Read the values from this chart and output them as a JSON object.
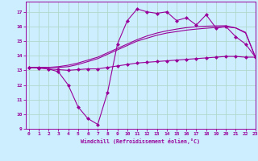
{
  "title": "",
  "xlabel": "Windchill (Refroidissement éolien,°C)",
  "bg_color": "#cceeff",
  "grid_color": "#b0d9cc",
  "line_color": "#990099",
  "x_data": [
    0,
    1,
    2,
    3,
    4,
    5,
    6,
    7,
    8,
    9,
    10,
    11,
    12,
    13,
    14,
    15,
    16,
    17,
    18,
    19,
    20,
    21,
    22,
    23
  ],
  "line1": [
    13.2,
    13.2,
    13.1,
    12.9,
    12.0,
    10.5,
    9.7,
    9.3,
    11.5,
    14.8,
    16.4,
    17.2,
    17.0,
    16.9,
    17.0,
    16.4,
    16.6,
    16.1,
    16.8,
    15.9,
    16.0,
    15.3,
    14.8,
    13.9
  ],
  "line2": [
    13.2,
    13.15,
    13.1,
    13.05,
    13.0,
    13.05,
    13.1,
    13.1,
    13.2,
    13.3,
    13.4,
    13.5,
    13.55,
    13.6,
    13.65,
    13.7,
    13.75,
    13.8,
    13.85,
    13.9,
    13.95,
    13.95,
    13.9,
    13.9
  ],
  "line3": [
    13.2,
    13.2,
    13.2,
    13.2,
    13.25,
    13.4,
    13.6,
    13.8,
    14.1,
    14.4,
    14.7,
    15.0,
    15.2,
    15.4,
    15.55,
    15.65,
    15.75,
    15.82,
    15.88,
    15.93,
    15.97,
    15.9,
    15.6,
    13.9
  ],
  "line4": [
    13.2,
    13.2,
    13.2,
    13.25,
    13.35,
    13.5,
    13.7,
    13.9,
    14.2,
    14.5,
    14.8,
    15.1,
    15.35,
    15.55,
    15.7,
    15.82,
    15.92,
    15.98,
    16.02,
    16.04,
    16.05,
    15.9,
    15.55,
    13.9
  ],
  "ylim": [
    9,
    17.7
  ],
  "xlim": [
    -0.3,
    23
  ],
  "yticks": [
    9,
    10,
    11,
    12,
    13,
    14,
    15,
    16,
    17
  ],
  "xticks": [
    0,
    1,
    2,
    3,
    4,
    5,
    6,
    7,
    8,
    9,
    10,
    11,
    12,
    13,
    14,
    15,
    16,
    17,
    18,
    19,
    20,
    21,
    22,
    23
  ]
}
